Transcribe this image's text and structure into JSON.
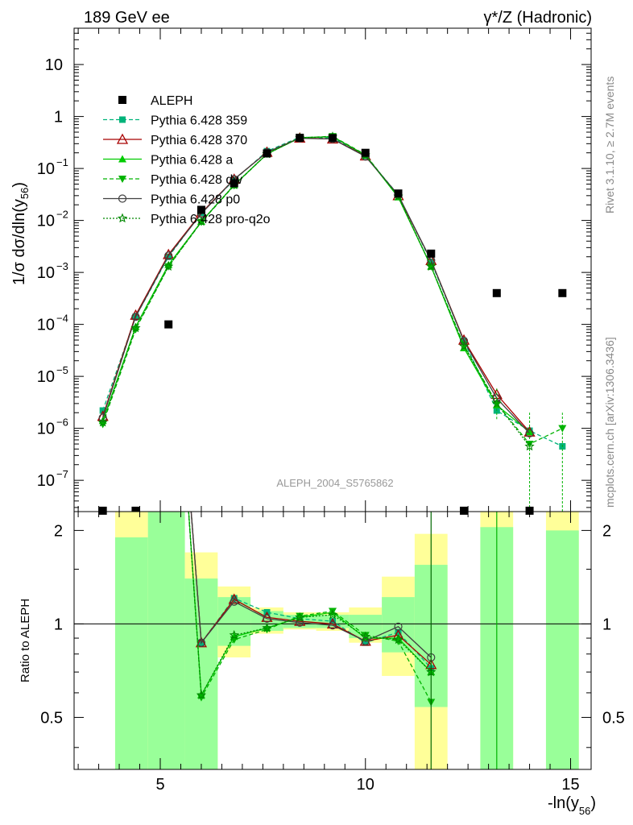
{
  "header": {
    "left": "189 GeV ee",
    "right": "γ*/Z (Hadronic)"
  },
  "side_labels": {
    "rivet": "Rivet 3.1.10, ≥ 2.7M events",
    "mcplots": "mcplots.cern.ch [arXiv:1306.3436]"
  },
  "watermark": "ALEPH_2004_S5765862",
  "y_label_main": "1/σ  dσ/dln(y56)",
  "y_label_ratio": "Ratio to ALEPH",
  "x_label": "-ln(y56)",
  "chart_data": {
    "type": "line",
    "x_range": [
      2.9,
      15.5
    ],
    "main_y_range": [
      2.5e-08,
      50
    ],
    "main_y_scale": "log",
    "ratio_y_range": [
      0.34,
      2.3
    ],
    "ratio_y_scale": "log",
    "x_ticks": [
      5,
      10,
      15
    ],
    "main_y_ticks": [
      {
        "v": 10,
        "label": "10"
      },
      {
        "v": 1,
        "label": "1"
      },
      {
        "v": 0.1,
        "label": "10",
        "exp": "−1"
      },
      {
        "v": 0.01,
        "label": "10",
        "exp": "−2"
      },
      {
        "v": 0.001,
        "label": "10",
        "exp": "−3"
      },
      {
        "v": 0.0001,
        "label": "10",
        "exp": "−4"
      },
      {
        "v": 1e-05,
        "label": "10",
        "exp": "−5"
      },
      {
        "v": 1e-06,
        "label": "10",
        "exp": "−6"
      },
      {
        "v": 1e-07,
        "label": "10",
        "exp": "−7"
      }
    ],
    "ratio_y_ticks": [
      {
        "v": 2,
        "label": "2"
      },
      {
        "v": 1,
        "label": "1"
      },
      {
        "v": 0.5,
        "label": "0.5"
      }
    ],
    "x": [
      3.6,
      4.4,
      5.2,
      6.0,
      6.8,
      7.6,
      8.4,
      9.2,
      10.0,
      10.8,
      11.6,
      12.4,
      13.2,
      14.0,
      14.8
    ],
    "data": {
      "name": "ALEPH",
      "y": [
        2.6e-08,
        2.6e-08,
        0.0001,
        0.016,
        0.052,
        0.195,
        0.39,
        0.385,
        0.2,
        0.033,
        0.0023,
        2.6e-08,
        0.0004,
        2.6e-08,
        0.0004
      ]
    },
    "band_bins": [
      {
        "x0": 3.9,
        "x1": 4.7,
        "green": [
          0.34,
          1.9
        ],
        "yellow": [
          0.34,
          2.3
        ]
      },
      {
        "x0": 4.7,
        "x1": 5.6,
        "green": [
          0.34,
          2.3
        ],
        "yellow": [
          0.34,
          2.3
        ]
      },
      {
        "x0": 5.6,
        "x1": 6.4,
        "green": [
          0.34,
          1.4
        ],
        "yellow": [
          0.34,
          1.7
        ]
      },
      {
        "x0": 6.4,
        "x1": 7.2,
        "green": [
          0.85,
          1.22
        ],
        "yellow": [
          0.78,
          1.32
        ]
      },
      {
        "x0": 7.2,
        "x1": 8.0,
        "green": [
          0.95,
          1.1
        ],
        "yellow": [
          0.93,
          1.13
        ]
      },
      {
        "x0": 8.0,
        "x1": 8.8,
        "green": [
          0.97,
          1.07
        ],
        "yellow": [
          0.96,
          1.09
        ]
      },
      {
        "x0": 8.8,
        "x1": 9.6,
        "green": [
          0.97,
          1.07
        ],
        "yellow": [
          0.95,
          1.09
        ]
      },
      {
        "x0": 9.6,
        "x1": 10.4,
        "green": [
          0.9,
          1.07
        ],
        "yellow": [
          0.87,
          1.13
        ]
      },
      {
        "x0": 10.4,
        "x1": 11.2,
        "green": [
          0.81,
          1.22
        ],
        "yellow": [
          0.68,
          1.42
        ]
      },
      {
        "x0": 11.2,
        "x1": 12.0,
        "green": [
          0.54,
          1.55
        ],
        "yellow": [
          0.34,
          1.95
        ]
      },
      {
        "x0": 12.8,
        "x1": 13.6,
        "green": [
          0.34,
          2.05
        ],
        "yellow": [
          0.34,
          2.3
        ]
      },
      {
        "x0": 14.4,
        "x1": 15.2,
        "green": [
          0.34,
          2.0
        ],
        "yellow": [
          0.34,
          2.3
        ]
      }
    ],
    "series": [
      {
        "name": "Pythia 6.428 359",
        "color": "#00b37a",
        "dash": "5,3",
        "marker": "square",
        "y": [
          2.2e-06,
          0.00014,
          0.002,
          0.014,
          0.06,
          0.215,
          0.4,
          0.39,
          0.175,
          0.031,
          0.0016,
          4.8e-05,
          2.2e-06,
          9e-07,
          4.5e-07
        ],
        "ratio": [
          null,
          null,
          20,
          0.87,
          1.21,
          1.09,
          1.04,
          1.02,
          0.87,
          0.94,
          0.72,
          null,
          null,
          null,
          null
        ]
      },
      {
        "name": "Pythia 6.428 370",
        "color": "#a80000",
        "dash": "",
        "marker": "triangle-open",
        "y": [
          1.7e-06,
          0.00015,
          0.0022,
          0.014,
          0.062,
          0.205,
          0.385,
          0.37,
          0.175,
          0.03,
          0.0017,
          5e-05,
          4.5e-06,
          8.5e-07,
          null
        ],
        "ratio": [
          null,
          null,
          20,
          0.87,
          1.2,
          1.05,
          1.02,
          1.0,
          0.88,
          0.92,
          0.74,
          null,
          null,
          null,
          null
        ]
      },
      {
        "name": "Pythia 6.428 a",
        "color": "#00cc00",
        "dash": "",
        "marker": "triangle",
        "y": [
          1.4e-06,
          9e-05,
          0.0014,
          0.0095,
          0.048,
          0.19,
          0.39,
          0.41,
          0.18,
          0.028,
          0.0013,
          3.5e-05,
          2.8e-06,
          8.5e-07,
          null
        ],
        "ratio": [
          0.34,
          null,
          20,
          0.59,
          0.91,
          0.97,
          1.05,
          1.09,
          0.9,
          0.9,
          0.7,
          null,
          null,
          null,
          null
        ]
      },
      {
        "name": "Pythia 6.428 dw",
        "color": "#00b300",
        "dash": "5,3",
        "marker": "triangle-down",
        "y": [
          1.2e-06,
          8e-05,
          0.0013,
          0.0093,
          0.047,
          0.19,
          0.39,
          0.415,
          0.185,
          0.029,
          0.0013,
          4e-05,
          3e-06,
          5e-07,
          1e-06
        ],
        "ratio": [
          0.34,
          null,
          20,
          0.58,
          0.89,
          0.96,
          1.06,
          1.1,
          0.92,
          0.88,
          0.56,
          null,
          null,
          null,
          null
        ]
      },
      {
        "name": "Pythia 6.428 p0",
        "color": "#404040",
        "dash": "",
        "marker": "circle-open",
        "y": [
          1.6e-06,
          0.00014,
          0.0021,
          0.0135,
          0.062,
          0.205,
          0.38,
          0.37,
          0.17,
          0.031,
          0.0017,
          4.8e-05,
          3.8e-06,
          8e-07,
          null
        ],
        "ratio": [
          null,
          null,
          20,
          0.87,
          1.18,
          1.04,
          1.01,
          0.99,
          0.88,
          0.98,
          0.78,
          null,
          null,
          null,
          null
        ]
      },
      {
        "name": "Pythia 6.428 pro-q2o",
        "color": "#008800",
        "dash": "2,2",
        "marker": "star",
        "y": [
          1.3e-06,
          8.5e-05,
          0.0013,
          0.0095,
          0.048,
          0.19,
          0.39,
          0.41,
          0.18,
          0.029,
          0.0013,
          3.8e-05,
          3e-06,
          4.5e-07,
          null
        ],
        "ratio": [
          0.34,
          null,
          20,
          0.59,
          0.92,
          0.97,
          1.05,
          1.07,
          0.91,
          0.89,
          0.7,
          null,
          null,
          null,
          null
        ]
      }
    ]
  }
}
